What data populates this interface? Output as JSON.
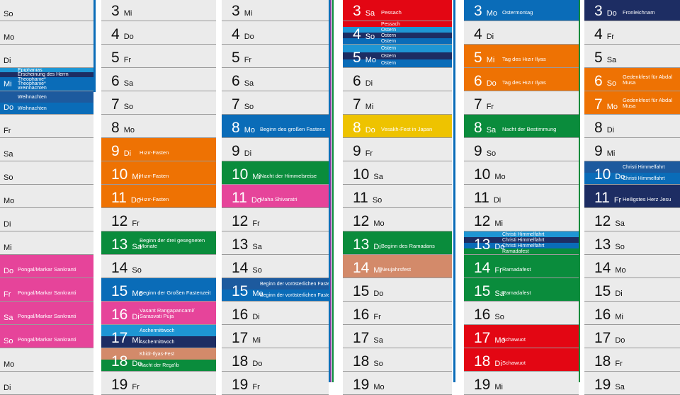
{
  "colors": {
    "gray": "#ebebeb",
    "red": "#e30613",
    "lightblue": "#1e96d4",
    "navy": "#1d2d63",
    "blue": "#0a6cb8",
    "midblue": "#1d5a9e",
    "green": "#0a8c3c",
    "orange": "#ee7203",
    "pink": "#e6449a",
    "yellow": "#eec300",
    "tan": "#d38a6a"
  },
  "columns": [
    {
      "rows": [
        {
          "wd": "So"
        },
        {
          "wd": "Mo"
        },
        {
          "wd": "Di"
        },
        {
          "wd": "Mi",
          "bands": [
            {
              "t": "Epiphanias",
              "c": "lightblue"
            },
            {
              "t": "Erscheinung des Herrn",
              "c": "navy"
            },
            {
              "t": "Theophanie*",
              "c": "blue"
            },
            {
              "t": "Theophanie*",
              "c": "blue"
            },
            {
              "t": "Weihnachten",
              "c": "blue"
            }
          ]
        },
        {
          "wd": "Do",
          "bands": [
            {
              "t": "Weihnachten",
              "c": "midblue"
            },
            {
              "t": "Weihnachten",
              "c": "blue"
            }
          ]
        },
        {
          "wd": "Fr"
        },
        {
          "wd": "Sa"
        },
        {
          "wd": "So"
        },
        {
          "wd": "Mo"
        },
        {
          "wd": "Di"
        },
        {
          "wd": "Mi"
        },
        {
          "wd": "Do",
          "bands": [
            {
              "t": "Pongal/Markar Sankranti",
              "c": "pink"
            }
          ]
        },
        {
          "wd": "Fr",
          "bands": [
            {
              "t": "Pongal/Markar Sankranti",
              "c": "pink"
            }
          ]
        },
        {
          "wd": "Sa",
          "bands": [
            {
              "t": "Pongal/Markar Sankranti",
              "c": "pink"
            }
          ]
        },
        {
          "wd": "So",
          "bands": [
            {
              "t": "Pongal/Markar Sankranti",
              "c": "pink"
            }
          ]
        },
        {
          "wd": "Mo"
        },
        {
          "wd": "Di"
        }
      ]
    },
    {
      "rows": [
        {
          "n": "3",
          "wd": "Mi"
        },
        {
          "n": "4",
          "wd": "Do"
        },
        {
          "n": "5",
          "wd": "Fr"
        },
        {
          "n": "6",
          "wd": "Sa"
        },
        {
          "n": "7",
          "wd": "So"
        },
        {
          "n": "8",
          "wd": "Mo"
        },
        {
          "n": "9",
          "wd": "Di",
          "bands": [
            {
              "t": "Hızır-Fasten",
              "c": "orange"
            }
          ]
        },
        {
          "n": "10",
          "wd": "Mi",
          "bands": [
            {
              "t": "Hızır-Fasten",
              "c": "orange"
            }
          ]
        },
        {
          "n": "11",
          "wd": "Do",
          "bands": [
            {
              "t": "Hızır-Fasten",
              "c": "orange"
            }
          ]
        },
        {
          "n": "12",
          "wd": "Fr"
        },
        {
          "n": "13",
          "wd": "Sa",
          "bands": [
            {
              "t": "Beginn der drei gesegneten Monate",
              "c": "green"
            }
          ]
        },
        {
          "n": "14",
          "wd": "So"
        },
        {
          "n": "15",
          "wd": "Mo",
          "bands": [
            {
              "t": "Beginn der Großen Fastenzeit",
              "c": "blue"
            }
          ]
        },
        {
          "n": "16",
          "wd": "Di",
          "bands": [
            {
              "t": "Vasant Rangapancami/ Sarasvati Puja",
              "c": "pink"
            }
          ]
        },
        {
          "n": "17",
          "wd": "Mi",
          "bands": [
            {
              "t": "Aschermittwoch",
              "c": "lightblue"
            },
            {
              "t": "Aschermittwoch",
              "c": "navy"
            }
          ]
        },
        {
          "n": "18",
          "wd": "Do",
          "bands": [
            {
              "t": "Khidr-Ilyas-Fest",
              "c": "tan"
            },
            {
              "t": "Nacht der Rega'ib",
              "c": "green"
            }
          ]
        },
        {
          "n": "19",
          "wd": "Fr"
        }
      ]
    },
    {
      "rows": [
        {
          "n": "3",
          "wd": "Mi"
        },
        {
          "n": "4",
          "wd": "Do"
        },
        {
          "n": "5",
          "wd": "Fr"
        },
        {
          "n": "6",
          "wd": "Sa"
        },
        {
          "n": "7",
          "wd": "So"
        },
        {
          "n": "8",
          "wd": "Mo",
          "bands": [
            {
              "t": "Beginn des großen Fastens",
              "c": "blue"
            }
          ]
        },
        {
          "n": "9",
          "wd": "Di"
        },
        {
          "n": "10",
          "wd": "Mi",
          "bands": [
            {
              "t": "Nacht der Himmelsreise",
              "c": "green"
            }
          ]
        },
        {
          "n": "11",
          "wd": "Do",
          "bands": [
            {
              "t": "Maha Shivaratri",
              "c": "pink"
            }
          ]
        },
        {
          "n": "12",
          "wd": "Fr"
        },
        {
          "n": "13",
          "wd": "Sa"
        },
        {
          "n": "14",
          "wd": "So"
        },
        {
          "n": "15",
          "wd": "Mo",
          "bands": [
            {
              "t": "Beginn der vorösterlichen Fastenzeit",
              "c": "midblue"
            },
            {
              "t": "Beginn der vorösterlichen Fastenzeit",
              "c": "blue"
            }
          ]
        },
        {
          "n": "16",
          "wd": "Di"
        },
        {
          "n": "17",
          "wd": "Mi"
        },
        {
          "n": "18",
          "wd": "Do"
        },
        {
          "n": "19",
          "wd": "Fr"
        }
      ]
    },
    {
      "rows": [
        {
          "n": "3",
          "wd": "Sa",
          "bands": [
            {
              "t": "Pessach",
              "c": "red"
            }
          ]
        },
        {
          "n": "4",
          "wd": "So",
          "bands": [
            {
              "t": "Pessach",
              "c": "red"
            },
            {
              "t": "Ostern",
              "c": "lightblue"
            },
            {
              "t": "Ostern",
              "c": "navy"
            },
            {
              "t": "Ostern",
              "c": "blue"
            }
          ]
        },
        {
          "n": "5",
          "wd": "Mo",
          "bands": [
            {
              "t": "Ostern",
              "c": "lightblue"
            },
            {
              "t": "Ostern",
              "c": "navy"
            },
            {
              "t": "Ostern",
              "c": "blue"
            }
          ]
        },
        {
          "n": "6",
          "wd": "Di"
        },
        {
          "n": "7",
          "wd": "Mi"
        },
        {
          "n": "8",
          "wd": "Do",
          "bands": [
            {
              "t": "Vesakh-Fest in Japan",
              "c": "yellow"
            }
          ]
        },
        {
          "n": "9",
          "wd": "Fr"
        },
        {
          "n": "10",
          "wd": "Sa"
        },
        {
          "n": "11",
          "wd": "So"
        },
        {
          "n": "12",
          "wd": "Mo"
        },
        {
          "n": "13",
          "wd": "Di",
          "bands": [
            {
              "t": "Beginn des Ramadans",
              "c": "green"
            }
          ]
        },
        {
          "n": "14",
          "wd": "Mi",
          "bands": [
            {
              "t": "Neujahrsfest",
              "c": "tan"
            }
          ]
        },
        {
          "n": "15",
          "wd": "Do"
        },
        {
          "n": "16",
          "wd": "Fr"
        },
        {
          "n": "17",
          "wd": "Sa"
        },
        {
          "n": "18",
          "wd": "So"
        },
        {
          "n": "19",
          "wd": "Mo"
        }
      ]
    },
    {
      "rows": [
        {
          "n": "3",
          "wd": "Mo",
          "bands": [
            {
              "t": "Ostermontag",
              "c": "blue"
            }
          ]
        },
        {
          "n": "4",
          "wd": "Di"
        },
        {
          "n": "5",
          "wd": "Mi",
          "bands": [
            {
              "t": "Tag des Hızır Ilyas",
              "c": "orange"
            }
          ]
        },
        {
          "n": "6",
          "wd": "Do",
          "bands": [
            {
              "t": "Tag des Hızır Ilyas",
              "c": "orange"
            }
          ]
        },
        {
          "n": "7",
          "wd": "Fr"
        },
        {
          "n": "8",
          "wd": "Sa",
          "bands": [
            {
              "t": "Nacht der Bestimmung",
              "c": "green"
            }
          ]
        },
        {
          "n": "9",
          "wd": "So"
        },
        {
          "n": "10",
          "wd": "Mo"
        },
        {
          "n": "11",
          "wd": "Di"
        },
        {
          "n": "12",
          "wd": "Mi"
        },
        {
          "n": "13",
          "wd": "Do",
          "bands": [
            {
              "t": "Christi Himmelfahrt",
              "c": "lightblue"
            },
            {
              "t": "Christi Himmelfahrt",
              "c": "navy"
            },
            {
              "t": "Christi Himmelfahrt",
              "c": "blue"
            },
            {
              "t": "Ramadafest",
              "c": "green"
            }
          ]
        },
        {
          "n": "14",
          "wd": "Fr",
          "bands": [
            {
              "t": "Ramadafest",
              "c": "green"
            }
          ]
        },
        {
          "n": "15",
          "wd": "Sa",
          "bands": [
            {
              "t": "Ramadafest",
              "c": "green"
            }
          ]
        },
        {
          "n": "16",
          "wd": "So"
        },
        {
          "n": "17",
          "wd": "Mo",
          "bands": [
            {
              "t": "Schawuot",
              "c": "red"
            }
          ]
        },
        {
          "n": "18",
          "wd": "Di",
          "bands": [
            {
              "t": "Schawuot",
              "c": "red"
            }
          ]
        },
        {
          "n": "19",
          "wd": "Mi"
        }
      ]
    },
    {
      "rows": [
        {
          "n": "3",
          "wd": "Do",
          "bands": [
            {
              "t": "Fronleichnam",
              "c": "navy"
            }
          ]
        },
        {
          "n": "4",
          "wd": "Fr"
        },
        {
          "n": "5",
          "wd": "Sa"
        },
        {
          "n": "6",
          "wd": "So",
          "bands": [
            {
              "t": "Gedenkfest für Abdal Musa",
              "c": "orange"
            }
          ]
        },
        {
          "n": "7",
          "wd": "Mo",
          "bands": [
            {
              "t": "Gedenkfest für Abdal Musa",
              "c": "orange"
            }
          ]
        },
        {
          "n": "8",
          "wd": "Di"
        },
        {
          "n": "9",
          "wd": "Mi"
        },
        {
          "n": "10",
          "wd": "Do",
          "bands": [
            {
              "t": "Christi Himmelfahrt",
              "c": "midblue"
            },
            {
              "t": "Christi Himmelfahrt",
              "c": "blue"
            }
          ]
        },
        {
          "n": "11",
          "wd": "Fr",
          "bands": [
            {
              "t": "Heiligstes Herz Jesu",
              "c": "navy"
            }
          ]
        },
        {
          "n": "12",
          "wd": "Sa"
        },
        {
          "n": "13",
          "wd": "So"
        },
        {
          "n": "14",
          "wd": "Mo"
        },
        {
          "n": "15",
          "wd": "Di"
        },
        {
          "n": "16",
          "wd": "Mi"
        },
        {
          "n": "17",
          "wd": "Do"
        },
        {
          "n": "18",
          "wd": "Fr"
        },
        {
          "n": "19",
          "wd": "Sa"
        }
      ]
    }
  ]
}
